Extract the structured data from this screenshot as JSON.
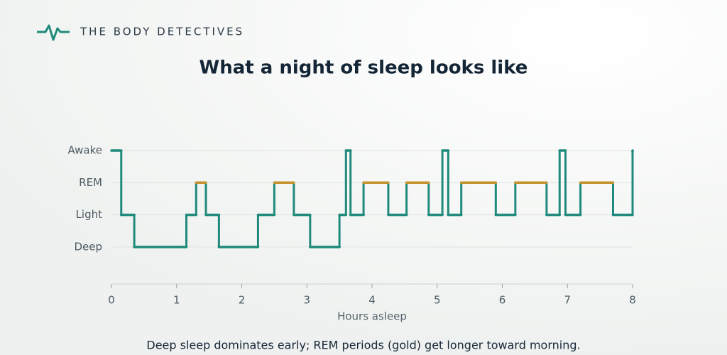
{
  "brand": "THE BODY DETECTIVES",
  "chart_data": {
    "type": "step",
    "title": "What a night of sleep looks like",
    "x_label": "Hours asleep",
    "caption": "Deep sleep dominates early; REM periods (gold) get longer toward morning.",
    "x": [
      0,
      0.15,
      0.35,
      1.15,
      1.3,
      1.45,
      1.65,
      2.25,
      2.5,
      2.8,
      3.05,
      3.5,
      3.6,
      3.67,
      3.87,
      4.25,
      4.53,
      4.87,
      5.08,
      5.17,
      5.37,
      5.9,
      6.2,
      6.68,
      6.88,
      6.97,
      7.2,
      7.7,
      8
    ],
    "values": [
      3,
      1,
      0,
      1,
      2,
      1,
      0,
      1,
      2,
      1,
      0,
      1,
      3,
      1,
      2,
      1,
      2,
      1,
      3,
      1,
      2,
      1,
      2,
      1,
      3,
      1,
      2,
      1,
      3
    ],
    "color": "#1f8a7b",
    "highlight_value": 2,
    "highlight_color": "#c4932f",
    "xlim": [
      0,
      8
    ],
    "xticks": [
      0,
      1,
      2,
      3,
      4,
      5,
      6,
      7,
      8
    ],
    "ylim": [
      -1.15,
      3
    ],
    "yticks": [
      {
        "value": 3,
        "label": "Awake"
      },
      {
        "value": 2,
        "label": "REM"
      },
      {
        "value": 1,
        "label": "Light"
      },
      {
        "value": 0,
        "label": "Deep"
      }
    ],
    "grid": true
  }
}
